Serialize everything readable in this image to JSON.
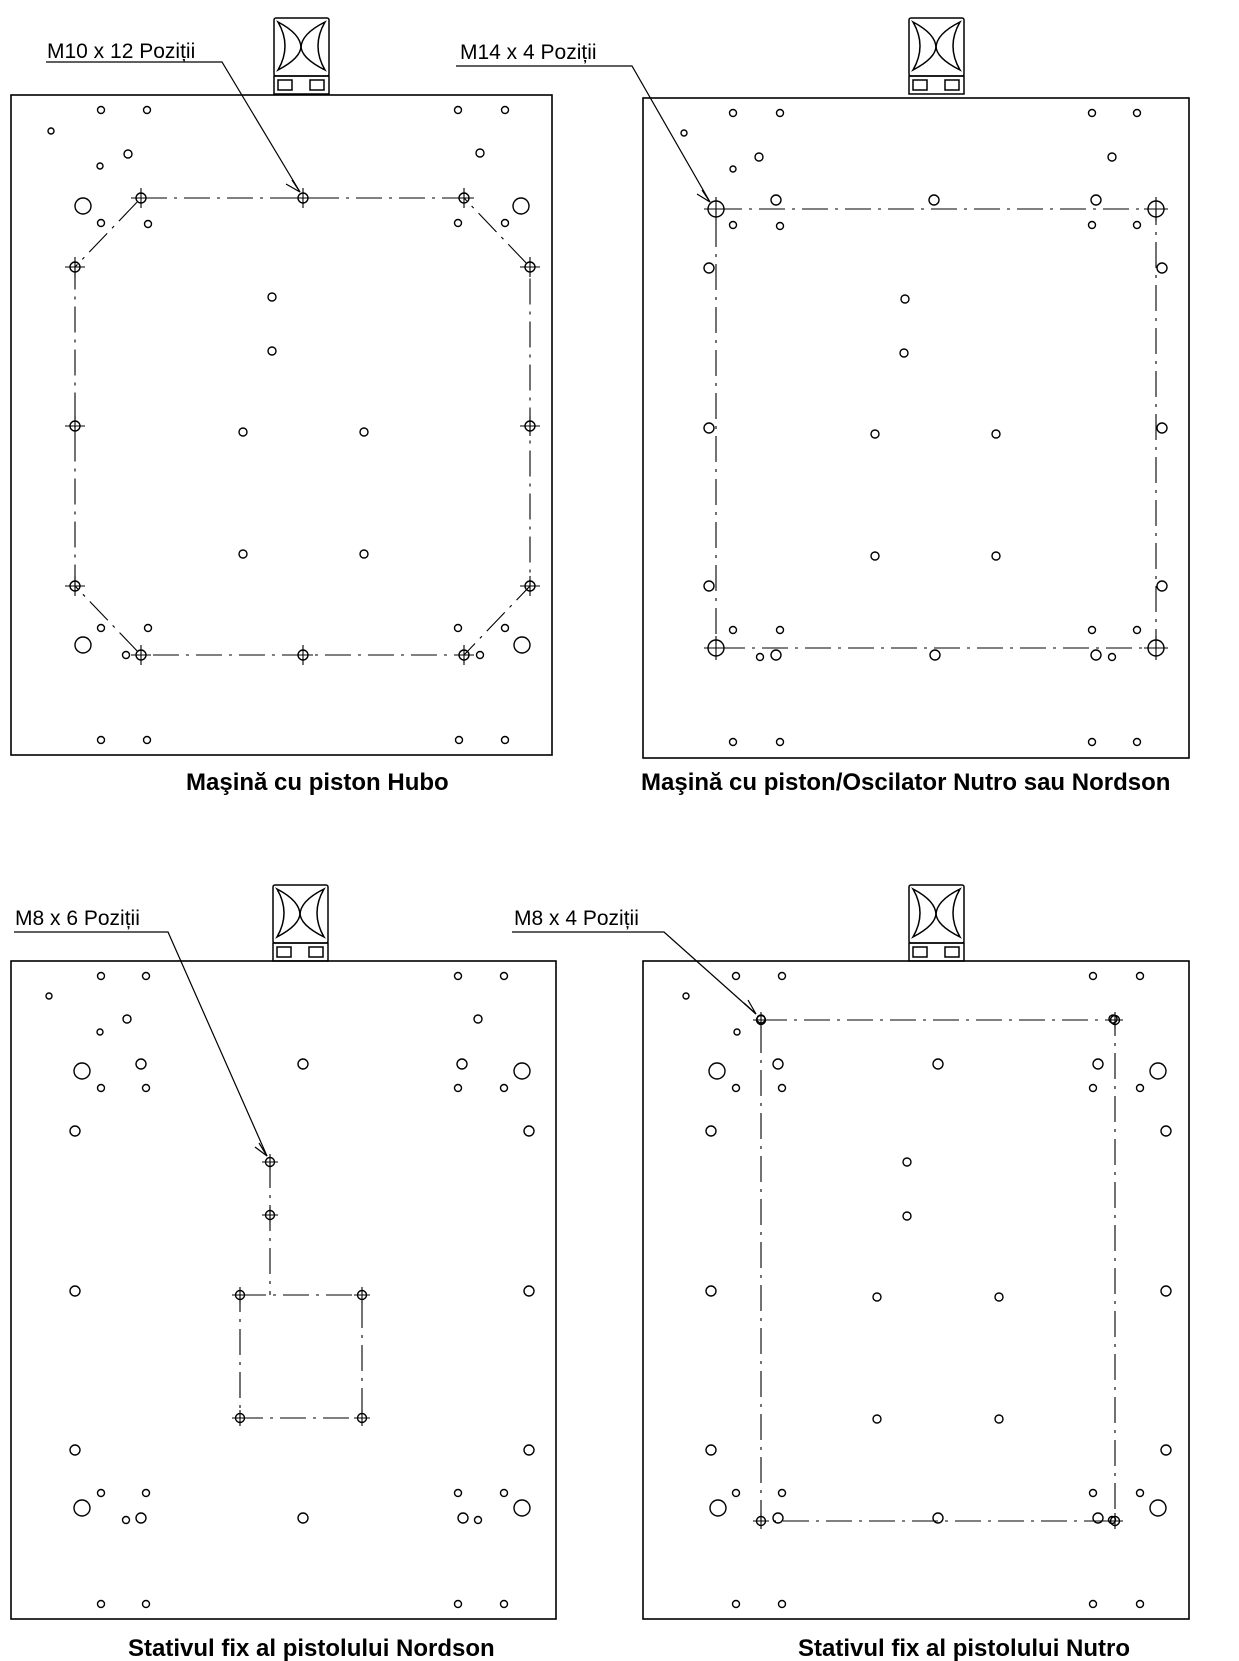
{
  "drawings": [
    {
      "id": "hubo",
      "callout_label": "M10 x 12 Poziții",
      "caption": "Maşină cu piston Hubo"
    },
    {
      "id": "nutro-nordson-oscillator",
      "callout_label": "M14 x 4 Poziții",
      "caption": "Maşină cu piston/Oscilator Nutro sau Nordson"
    },
    {
      "id": "nordson-fixed-stand",
      "callout_label": "M8 x 6 Poziții",
      "caption": "Stativul fix al pistolului Nordson"
    },
    {
      "id": "nutro-fixed-stand",
      "callout_label": "M8 x 4 Poziții",
      "caption": "Stativul fix al pistolului Nutro"
    }
  ]
}
